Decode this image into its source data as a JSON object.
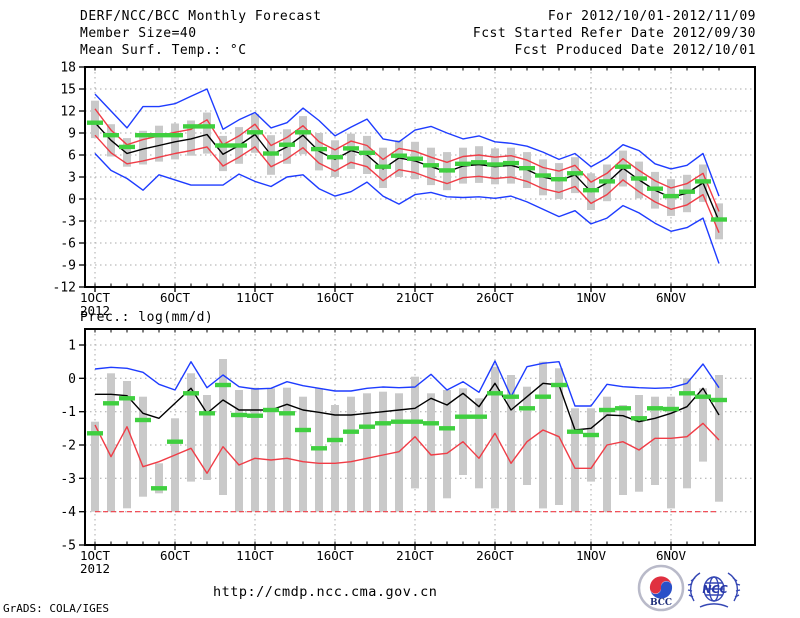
{
  "header": {
    "title": "DERF/NCC/BCC Monthly Forecast",
    "member_size": "Member Size=40",
    "for_period": "For 2012/10/01-2012/11/09",
    "refer_date": "Fcst Started Refer Date 2012/09/30",
    "produced_date": "Fcst Produced Date 2012/10/01"
  },
  "footer": {
    "url": "http://cmdp.ncc.cma.gov.cn",
    "grads_credit": "GrADS: COLA/IGES",
    "logos": [
      {
        "name": "bcc-logo",
        "label": "BCC"
      },
      {
        "name": "ncc-logo",
        "label": "NCC"
      }
    ]
  },
  "colors": {
    "blue": "#1e3cff",
    "red": "#f03c46",
    "black": "#000000",
    "green": "#3fcf3f",
    "bar": "#c9c9c9",
    "grid": "#a8a8a8"
  },
  "chart_data": [
    {
      "type": "line",
      "title": "Mean Surf. Temp.: °C",
      "x_tick_labels": [
        "1OCT",
        "6OCT",
        "11OCT",
        "16OCT",
        "21OCT",
        "26OCT",
        "1NOV",
        "6NOV"
      ],
      "x_tick_days": [
        1,
        6,
        11,
        16,
        21,
        26,
        32,
        37
      ],
      "x_year_label": "2012",
      "ylim": [
        -12,
        18
      ],
      "yticks": [
        18,
        15,
        12,
        9,
        6,
        3,
        0,
        -3,
        -6,
        -9,
        -12
      ],
      "grid": true,
      "legend": "none",
      "series": [
        {
          "name": "ensemble-max-line",
          "color": "blue",
          "values": [
            14.3,
            12.0,
            9.7,
            12.6,
            12.6,
            13.0,
            14.0,
            15.0,
            9.5,
            10.8,
            11.8,
            9.7,
            10.4,
            12.4,
            10.7,
            8.6,
            9.8,
            10.9,
            8.2,
            7.8,
            9.4,
            9.9,
            9.0,
            8.2,
            8.6,
            7.8,
            7.6,
            7.2,
            6.4,
            5.4,
            6.2,
            4.4,
            5.6,
            7.4,
            6.6,
            4.8,
            4.1,
            4.6,
            6.2,
            0.4
          ]
        },
        {
          "name": "mean-plus-std-line",
          "color": "red",
          "values": [
            12.3,
            9.4,
            7.4,
            8.1,
            8.6,
            9.1,
            9.5,
            10.8,
            7.4,
            8.6,
            10.2,
            7.3,
            8.4,
            10.0,
            7.8,
            6.7,
            7.9,
            7.3,
            5.4,
            6.9,
            6.5,
            5.7,
            5.0,
            5.8,
            6.0,
            5.7,
            5.9,
            5.3,
            4.3,
            3.8,
            4.6,
            2.3,
            3.5,
            5.5,
            3.9,
            2.5,
            1.5,
            2.1,
            3.5,
            -1.7
          ]
        },
        {
          "name": "ensemble-mean-line",
          "color": "black",
          "values": [
            10.4,
            8.0,
            6.2,
            6.8,
            7.3,
            7.8,
            8.2,
            8.8,
            6.1,
            7.3,
            8.8,
            6.0,
            7.1,
            8.7,
            6.5,
            5.4,
            6.6,
            6.0,
            4.1,
            5.6,
            5.2,
            4.4,
            3.7,
            4.5,
            4.7,
            4.4,
            4.6,
            4.0,
            3.0,
            2.5,
            3.3,
            1.0,
            2.2,
            4.2,
            2.6,
            1.2,
            0.2,
            0.8,
            2.2,
            -3.0
          ]
        },
        {
          "name": "mean-minus-std-line",
          "color": "red",
          "values": [
            8.7,
            6.3,
            4.8,
            5.2,
            5.7,
            6.2,
            6.6,
            7.1,
            4.5,
            5.7,
            7.1,
            4.4,
            5.5,
            7.0,
            4.9,
            3.8,
            5.0,
            4.4,
            2.5,
            4.0,
            3.6,
            2.8,
            2.1,
            2.9,
            3.1,
            2.8,
            3.0,
            2.4,
            1.4,
            0.9,
            1.7,
            -0.6,
            0.6,
            2.6,
            1.0,
            -0.4,
            -1.4,
            -0.8,
            0.6,
            -4.6
          ]
        },
        {
          "name": "ensemble-min-line",
          "color": "blue",
          "values": [
            6.2,
            3.9,
            2.8,
            1.2,
            3.3,
            2.6,
            1.9,
            1.9,
            1.9,
            3.4,
            2.4,
            1.7,
            3.0,
            3.3,
            1.4,
            0.4,
            1.0,
            2.3,
            0.4,
            -0.7,
            0.6,
            0.9,
            0.3,
            0.2,
            0.3,
            0.1,
            0.4,
            -0.4,
            -1.4,
            -2.4,
            -1.6,
            -3.4,
            -2.6,
            -0.9,
            -1.9,
            -3.3,
            -4.4,
            -3.9,
            -2.6,
            -8.8
          ]
        }
      ],
      "markers": {
        "name": "observation-dashes",
        "color": "green",
        "values": [
          10.4,
          8.7,
          7.1,
          8.7,
          8.7,
          8.7,
          9.9,
          9.9,
          7.3,
          7.3,
          9.1,
          6.2,
          7.4,
          9.1,
          6.8,
          5.7,
          6.9,
          6.3,
          4.4,
          5.9,
          5.5,
          4.6,
          3.9,
          4.8,
          5.0,
          4.7,
          4.9,
          4.2,
          3.2,
          2.7,
          3.5,
          1.2,
          2.4,
          4.4,
          2.8,
          1.4,
          0.4,
          1.0,
          2.4,
          -2.8
        ]
      },
      "bars": {
        "name": "member-spread-bars",
        "color": "bar",
        "top": [
          13.4,
          10.2,
          8.3,
          9.3,
          10.0,
          10.3,
          10.7,
          11.8,
          8.6,
          9.8,
          11.6,
          8.7,
          9.5,
          11.3,
          9.0,
          8.0,
          8.9,
          8.6,
          7.0,
          8.0,
          7.8,
          7.0,
          6.4,
          7.0,
          7.2,
          6.9,
          7.0,
          6.4,
          5.4,
          4.9,
          5.7,
          3.5,
          4.7,
          6.6,
          5.1,
          3.7,
          2.7,
          3.3,
          4.7,
          -0.6
        ],
        "bottom": [
          8.3,
          5.8,
          4.4,
          4.7,
          5.1,
          5.4,
          5.9,
          6.2,
          3.8,
          4.8,
          6.3,
          3.3,
          4.8,
          6.1,
          3.9,
          3.0,
          4.1,
          3.4,
          1.5,
          3.0,
          2.7,
          1.9,
          1.2,
          2.1,
          2.2,
          2.0,
          2.1,
          1.5,
          0.5,
          0.0,
          0.8,
          -1.5,
          -0.3,
          1.7,
          0.1,
          -1.3,
          -2.3,
          -1.8,
          -0.4,
          -5.5
        ]
      }
    },
    {
      "type": "line",
      "title": "Prec.: log(mm/d)",
      "x_tick_labels": [
        "1OCT",
        "6OCT",
        "11OCT",
        "16OCT",
        "21OCT",
        "26OCT",
        "1NOV",
        "6NOV"
      ],
      "x_tick_days": [
        1,
        6,
        11,
        16,
        21,
        26,
        32,
        37
      ],
      "x_year_label": "2012",
      "ylim": [
        -5,
        1.48
      ],
      "yticks": [
        1,
        0,
        -1,
        -2,
        -3,
        -4,
        -5
      ],
      "grid": true,
      "legend": "none",
      "floor_line": -4,
      "series": [
        {
          "name": "ensemble-max-line",
          "color": "blue",
          "values": [
            0.28,
            0.33,
            0.3,
            0.18,
            -0.18,
            -0.35,
            0.5,
            -0.28,
            0.1,
            -0.25,
            -0.32,
            -0.3,
            -0.1,
            -0.22,
            -0.3,
            -0.38,
            -0.38,
            -0.3,
            -0.26,
            -0.28,
            -0.26,
            0.12,
            -0.35,
            -0.1,
            -0.42,
            0.52,
            -0.55,
            0.35,
            0.45,
            0.5,
            -0.83,
            -0.83,
            -0.18,
            -0.25,
            -0.28,
            -0.3,
            -0.28,
            -0.15,
            0.43,
            -0.28
          ]
        },
        {
          "name": "ensemble-mean-line",
          "color": "black",
          "values": [
            -0.48,
            -0.48,
            -0.52,
            -1.05,
            -1.2,
            -0.75,
            -0.3,
            -1.05,
            -0.65,
            -0.95,
            -0.95,
            -0.95,
            -0.78,
            -0.95,
            -1.02,
            -1.1,
            -1.1,
            -1.05,
            -1.0,
            -0.95,
            -0.9,
            -0.6,
            -0.8,
            -0.45,
            -0.85,
            -0.15,
            -0.95,
            -0.55,
            -0.15,
            -0.2,
            -1.55,
            -1.5,
            -1.1,
            -1.12,
            -1.3,
            -1.2,
            -1.05,
            -0.85,
            -0.3,
            -1.1
          ]
        },
        {
          "name": "ensemble-min-line",
          "color": "red",
          "values": [
            -1.4,
            -2.35,
            -1.45,
            -2.65,
            -2.5,
            -2.3,
            -2.1,
            -2.85,
            -2.05,
            -2.6,
            -2.4,
            -2.45,
            -2.4,
            -2.5,
            -2.55,
            -2.55,
            -2.5,
            -2.4,
            -2.3,
            -2.2,
            -1.75,
            -2.3,
            -2.25,
            -1.9,
            -2.4,
            -1.65,
            -2.55,
            -1.9,
            -1.55,
            -1.75,
            -2.7,
            -2.7,
            -2.0,
            -1.9,
            -2.15,
            -1.8,
            -1.8,
            -1.75,
            -1.35,
            -1.85
          ]
        }
      ],
      "markers": {
        "name": "observation-dashes",
        "color": "green",
        "values": [
          -1.65,
          -0.75,
          -0.6,
          -1.25,
          -3.3,
          -1.9,
          -0.45,
          -1.05,
          -0.2,
          -1.1,
          -1.12,
          -0.95,
          -1.05,
          -1.55,
          -2.1,
          -1.85,
          -1.6,
          -1.45,
          -1.35,
          -1.3,
          -1.3,
          -1.35,
          -1.5,
          -1.15,
          -1.15,
          -0.45,
          -0.55,
          -0.9,
          -0.55,
          -0.2,
          -1.6,
          -1.7,
          -0.95,
          -0.9,
          -1.2,
          -0.9,
          -0.92,
          -0.45,
          -0.55,
          -0.65
        ]
      },
      "bars": {
        "name": "member-spread-bars",
        "color": "bar",
        "top": [
          -1.3,
          0.15,
          -0.08,
          -0.55,
          -2.55,
          -1.2,
          0.15,
          -0.5,
          0.58,
          -0.35,
          -0.28,
          -0.3,
          -0.28,
          -0.55,
          -0.3,
          -0.8,
          -0.55,
          -0.45,
          -0.4,
          -0.45,
          0.05,
          -0.45,
          -0.35,
          -0.3,
          -0.6,
          0.35,
          0.1,
          -0.25,
          0.5,
          0.3,
          -0.9,
          -0.9,
          -0.55,
          -0.8,
          -0.5,
          -0.55,
          -0.55,
          0.0,
          -0.3,
          0.1
        ],
        "bottom": [
          -4.0,
          -4.0,
          -3.9,
          -3.55,
          -3.45,
          -4.0,
          -3.1,
          -3.05,
          -3.5,
          -4.0,
          -4.0,
          -4.0,
          -4.0,
          -4.0,
          -4.0,
          -4.0,
          -4.0,
          -4.0,
          -4.0,
          -4.0,
          -3.3,
          -4.0,
          -3.6,
          -2.9,
          -3.3,
          -3.9,
          -4.0,
          -3.2,
          -3.9,
          -3.8,
          -4.0,
          -3.1,
          -4.0,
          -3.5,
          -3.4,
          -3.2,
          -3.9,
          -3.3,
          -2.5,
          -3.7
        ]
      }
    }
  ]
}
